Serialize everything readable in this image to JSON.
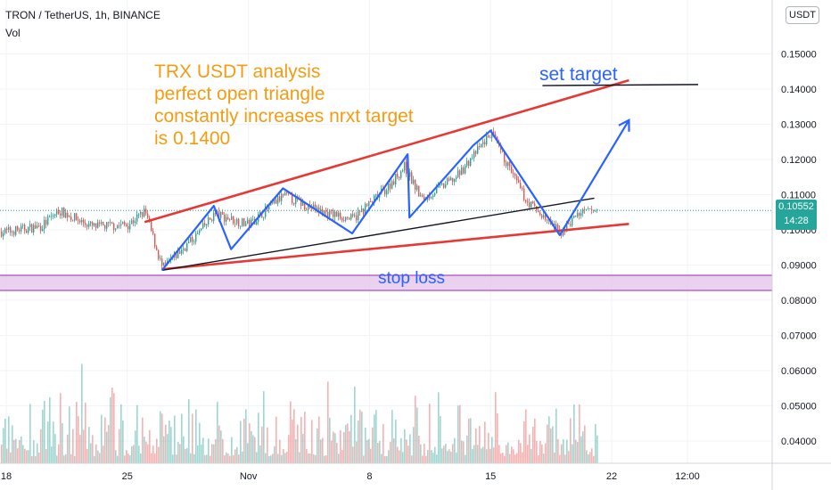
{
  "header": {
    "symbol_title": "TRON / TetherUS, 1h, BINANCE",
    "volume_label": "Vol",
    "currency_button": "USDT"
  },
  "annotations": {
    "analysis_lines": [
      "TRX USDT analysis",
      "perfect open triangle",
      "constantly increases nrxt target",
      "is 0.1400"
    ],
    "target_label": "set target",
    "stop_loss_label": "stop loss"
  },
  "price_badge": {
    "price": "0.10552",
    "countdown": "14:28"
  },
  "colors": {
    "up": "#26a69a",
    "down": "#ef5350",
    "trendline_red": "#e53935",
    "pattern_blue": "#2962ff",
    "annotation_orange": "#f39c12",
    "stop_loss_fill": "#e1bee7",
    "stop_loss_border": "#9c27b0"
  },
  "chart_data": {
    "type": "candlestick",
    "y_axis": {
      "ticks": [
        0.15,
        0.14,
        0.13,
        0.12,
        0.11,
        0.1,
        0.09,
        0.08,
        0.07,
        0.06,
        0.05,
        0.04
      ],
      "tick_labels": [
        "0.15000",
        "0.14000",
        "0.13000",
        "0.12000",
        "0.11000",
        "0.10000",
        "0.09000",
        "0.08000",
        "0.07000",
        "0.06000",
        "0.05000",
        "0.04000"
      ],
      "range": [
        0.032,
        0.161
      ]
    },
    "x_axis": {
      "tick_labels": [
        "18",
        "25",
        "Nov",
        "8",
        "15",
        "22",
        "12:00"
      ]
    },
    "last_price": 0.10552,
    "stop_loss_zone": [
      0.0828,
      0.0871
    ],
    "trendlines": [
      {
        "name": "upper-red",
        "points": [
          [
            "Oct 26",
            0.1022
          ],
          [
            "Nov 23",
            0.1425
          ]
        ]
      },
      {
        "name": "lower-red",
        "points": [
          [
            "Oct 27",
            0.0888
          ],
          [
            "Nov 23",
            0.1017
          ]
        ]
      },
      {
        "name": "support-black",
        "points": [
          [
            "Oct 27",
            0.0885
          ],
          [
            "Nov 21",
            0.109
          ]
        ]
      },
      {
        "name": "target-black",
        "points": [
          [
            "Nov 18",
            0.141
          ],
          [
            "Nov 27",
            0.1413
          ]
        ]
      }
    ],
    "zigzag_path": [
      [
        "Oct 27",
        0.0885
      ],
      [
        "Oct 30",
        0.1068
      ],
      [
        "Oct 31",
        0.0945
      ],
      [
        "Nov 3",
        0.1118
      ],
      [
        "Nov 7",
        0.099
      ],
      [
        "Nov 10",
        0.1215
      ],
      [
        "Nov 10",
        0.1035
      ],
      [
        "Nov 14",
        0.124
      ],
      [
        "Nov 15",
        0.1282
      ],
      [
        "Nov 19",
        0.0985
      ],
      [
        "Nov 23",
        0.1312
      ]
    ],
    "price_series_approx": [
      [
        "Oct 18",
        0.0995
      ],
      [
        "Oct 20",
        0.101
      ],
      [
        "Oct 21",
        0.1055
      ],
      [
        "Oct 23",
        0.1008
      ],
      [
        "Oct 25",
        0.1015
      ],
      [
        "Oct 26",
        0.1052
      ],
      [
        "Oct 27",
        0.089
      ],
      [
        "Oct 29",
        0.0985
      ],
      [
        "Oct 30",
        0.1045
      ],
      [
        "Nov 1",
        0.1015
      ],
      [
        "Nov 3",
        0.1098
      ],
      [
        "Nov 5",
        0.1055
      ],
      [
        "Nov 7",
        0.103
      ],
      [
        "Nov 9",
        0.112
      ],
      [
        "Nov 10",
        0.118
      ],
      [
        "Nov 11",
        0.1085
      ],
      [
        "Nov 13",
        0.115
      ],
      [
        "Nov 15",
        0.1275
      ],
      [
        "Nov 17",
        0.1085
      ],
      [
        "Nov 19",
        0.099
      ],
      [
        "Nov 20",
        0.1045
      ],
      [
        "Nov 21",
        0.1055
      ]
    ]
  }
}
